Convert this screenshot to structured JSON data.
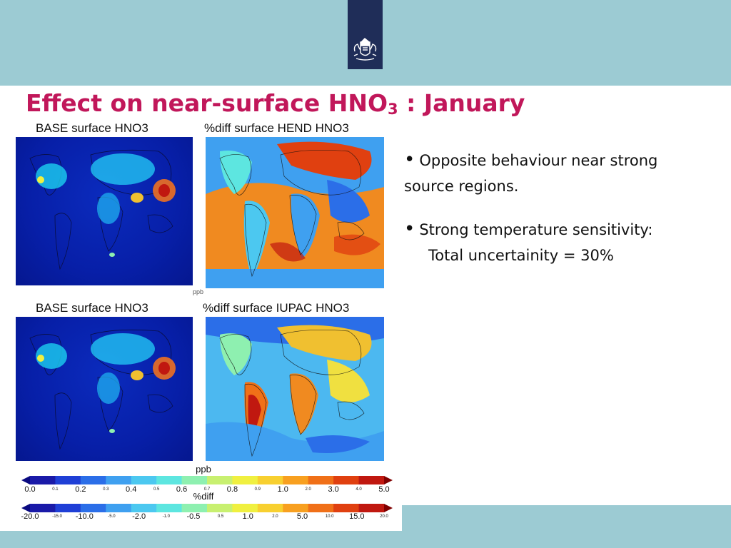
{
  "slide": {
    "title_main": "Effect on near-surface HNO",
    "title_sub": "3",
    "title_suffix": " : January"
  },
  "panels": {
    "top_left_title": "BASE surface HNO3",
    "top_right_title": "%diff surface HEND HNO3",
    "bottom_left_title": "BASE surface HNO3",
    "bottom_right_title": "%diff surface IUPAC HNO3",
    "top_unit_fragment": "ppb"
  },
  "colorbars": {
    "ppb": {
      "unit": "ppb",
      "ticks_big": [
        "0.0",
        "0.2",
        "0.4",
        "0.6",
        "0.8",
        "1.0",
        "3.0",
        "5.0"
      ],
      "ticks_small": [
        "0.1",
        "0.3",
        "0.5",
        "0.7",
        "0.9",
        "2.0",
        "4.0"
      ]
    },
    "diff": {
      "unit": "%diff",
      "ticks_big": [
        "-20.0",
        "-10.0",
        "-2.0",
        "-0.5",
        "1.0",
        "5.0",
        "15.0"
      ],
      "ticks_small": [
        "-15.0",
        "-5.0",
        "-1.0",
        "0.5",
        "2.0",
        "10.0",
        "20.0"
      ]
    },
    "colors": [
      "#1a1aa8",
      "#1f3fd6",
      "#2b6ee8",
      "#3fa0f0",
      "#4cc8f0",
      "#5de6e0",
      "#8ef0b0",
      "#c8f070",
      "#f0f040",
      "#f8d030",
      "#f8a020",
      "#f07018",
      "#e04010",
      "#c01810"
    ]
  },
  "bullets": [
    {
      "line1": "Opposite behaviour near strong",
      "line2": "source regions."
    },
    {
      "line1": "Strong temperature sensitivity:",
      "line2": "Total uncertainity = 30%"
    }
  ],
  "icons": {
    "logo": "royal-coat-of-arms-icon"
  }
}
